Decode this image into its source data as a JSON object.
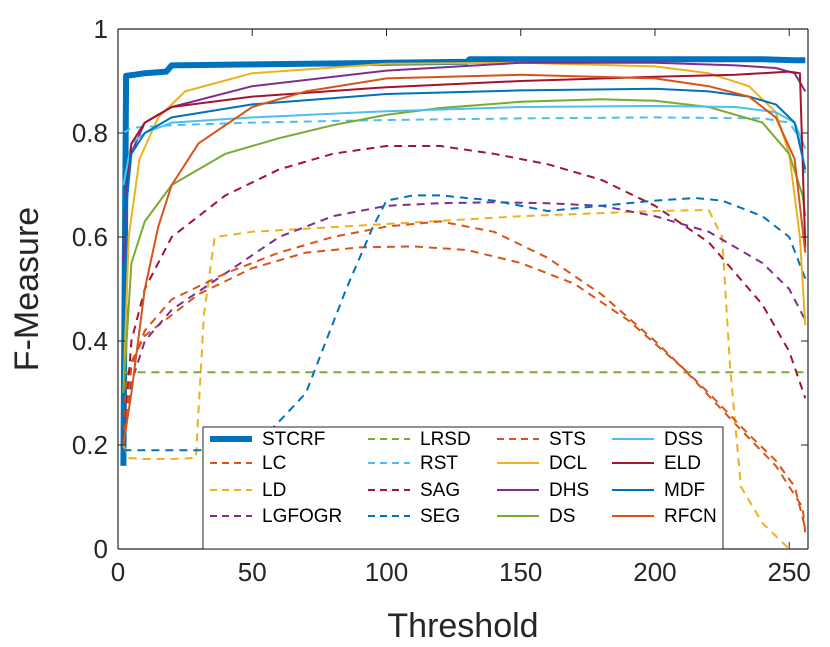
{
  "chart_data": {
    "type": "line",
    "xlabel": "Threshold",
    "ylabel": "F-Measure",
    "xlim": [
      0,
      257
    ],
    "ylim": [
      0,
      1
    ],
    "xticks": [
      0,
      50,
      100,
      150,
      200,
      250
    ],
    "yticks": [
      0,
      0.2,
      0.4,
      0.6,
      0.8,
      1
    ],
    "ytick_labels": [
      "0",
      "0.2",
      "0.4",
      "0.6",
      "0.8",
      "1"
    ],
    "grid": false,
    "legend_position": "bottom-center",
    "series": [
      {
        "name": "STCRF",
        "color": "#0072bd",
        "style": "thick",
        "points": [
          [
            2,
            0.16
          ],
          [
            3,
            0.91
          ],
          [
            6,
            0.912
          ],
          [
            10,
            0.915
          ],
          [
            18,
            0.918
          ],
          [
            20,
            0.93
          ],
          [
            50,
            0.932
          ],
          [
            100,
            0.935
          ],
          [
            130,
            0.937
          ],
          [
            131,
            0.942
          ],
          [
            200,
            0.942
          ],
          [
            240,
            0.942
          ],
          [
            252,
            0.94
          ],
          [
            256,
            0.94
          ]
        ]
      },
      {
        "name": "LC",
        "color": "#d95319",
        "style": "dashed",
        "points": [
          [
            2,
            0.2
          ],
          [
            3,
            0.32
          ],
          [
            5,
            0.36
          ],
          [
            10,
            0.41
          ],
          [
            20,
            0.45
          ],
          [
            30,
            0.49
          ],
          [
            50,
            0.54
          ],
          [
            70,
            0.57
          ],
          [
            90,
            0.58
          ],
          [
            110,
            0.582
          ],
          [
            130,
            0.575
          ],
          [
            150,
            0.55
          ],
          [
            170,
            0.51
          ],
          [
            190,
            0.44
          ],
          [
            210,
            0.35
          ],
          [
            230,
            0.24
          ],
          [
            245,
            0.16
          ],
          [
            255,
            0.08
          ],
          [
            256,
            0.03
          ]
        ]
      },
      {
        "name": "LD",
        "color": "#edb120",
        "style": "dashed",
        "points": [
          [
            2,
            0.2
          ],
          [
            4,
            0.175
          ],
          [
            10,
            0.173
          ],
          [
            20,
            0.173
          ],
          [
            29,
            0.175
          ],
          [
            32,
            0.45
          ],
          [
            36,
            0.6
          ],
          [
            50,
            0.61
          ],
          [
            100,
            0.625
          ],
          [
            150,
            0.64
          ],
          [
            200,
            0.65
          ],
          [
            220,
            0.652
          ],
          [
            225,
            0.6
          ],
          [
            228,
            0.35
          ],
          [
            232,
            0.12
          ],
          [
            240,
            0.05
          ],
          [
            250,
            0.0
          ]
        ]
      },
      {
        "name": "LGFOGR",
        "color": "#7e2f8e",
        "style": "dashed",
        "points": [
          [
            2,
            0.2
          ],
          [
            5,
            0.32
          ],
          [
            10,
            0.4
          ],
          [
            20,
            0.46
          ],
          [
            40,
            0.53
          ],
          [
            60,
            0.6
          ],
          [
            80,
            0.64
          ],
          [
            100,
            0.66
          ],
          [
            120,
            0.665
          ],
          [
            140,
            0.667
          ],
          [
            160,
            0.665
          ],
          [
            180,
            0.66
          ],
          [
            200,
            0.64
          ],
          [
            220,
            0.61
          ],
          [
            240,
            0.55
          ],
          [
            250,
            0.5
          ],
          [
            256,
            0.44
          ]
        ]
      },
      {
        "name": "LRSD",
        "color": "#77ac30",
        "style": "dashed",
        "points": [
          [
            2,
            0.34
          ],
          [
            10,
            0.34
          ],
          [
            256,
            0.34
          ]
        ]
      },
      {
        "name": "RST",
        "color": "#4dbeee",
        "style": "dashed",
        "points": [
          [
            2,
            0.8
          ],
          [
            5,
            0.81
          ],
          [
            20,
            0.815
          ],
          [
            50,
            0.82
          ],
          [
            100,
            0.825
          ],
          [
            150,
            0.828
          ],
          [
            200,
            0.83
          ],
          [
            240,
            0.828
          ],
          [
            250,
            0.82
          ],
          [
            254,
            0.79
          ],
          [
            256,
            0.72
          ]
        ]
      },
      {
        "name": "SAG",
        "color": "#a2142f",
        "style": "dashed",
        "points": [
          [
            2,
            0.2
          ],
          [
            5,
            0.4
          ],
          [
            10,
            0.5
          ],
          [
            20,
            0.6
          ],
          [
            40,
            0.68
          ],
          [
            60,
            0.73
          ],
          [
            80,
            0.76
          ],
          [
            100,
            0.775
          ],
          [
            120,
            0.775
          ],
          [
            140,
            0.76
          ],
          [
            160,
            0.74
          ],
          [
            180,
            0.71
          ],
          [
            200,
            0.66
          ],
          [
            220,
            0.59
          ],
          [
            240,
            0.47
          ],
          [
            250,
            0.38
          ],
          [
            256,
            0.29
          ]
        ]
      },
      {
        "name": "SEG",
        "color": "#0072bd",
        "style": "dashed",
        "points": [
          [
            2,
            0.19
          ],
          [
            10,
            0.19
          ],
          [
            30,
            0.19
          ],
          [
            50,
            0.19
          ],
          [
            70,
            0.3
          ],
          [
            85,
            0.5
          ],
          [
            95,
            0.62
          ],
          [
            100,
            0.67
          ],
          [
            110,
            0.68
          ],
          [
            120,
            0.68
          ],
          [
            140,
            0.67
          ],
          [
            160,
            0.65
          ],
          [
            180,
            0.66
          ],
          [
            200,
            0.67
          ],
          [
            215,
            0.675
          ],
          [
            225,
            0.67
          ],
          [
            240,
            0.64
          ],
          [
            250,
            0.6
          ],
          [
            256,
            0.52
          ]
        ]
      },
      {
        "name": "STS",
        "color": "#d95319",
        "style": "dashed",
        "points": [
          [
            2,
            0.2
          ],
          [
            5,
            0.35
          ],
          [
            10,
            0.42
          ],
          [
            20,
            0.48
          ],
          [
            40,
            0.53
          ],
          [
            60,
            0.57
          ],
          [
            80,
            0.6
          ],
          [
            100,
            0.62
          ],
          [
            120,
            0.63
          ],
          [
            140,
            0.61
          ],
          [
            160,
            0.56
          ],
          [
            180,
            0.49
          ],
          [
            200,
            0.4
          ],
          [
            220,
            0.3
          ],
          [
            235,
            0.22
          ],
          [
            245,
            0.17
          ],
          [
            252,
            0.12
          ],
          [
            256,
            0.04
          ]
        ]
      },
      {
        "name": "DCL",
        "color": "#edb120",
        "style": "solid",
        "points": [
          [
            2,
            0.3
          ],
          [
            4,
            0.6
          ],
          [
            8,
            0.75
          ],
          [
            15,
            0.83
          ],
          [
            25,
            0.88
          ],
          [
            50,
            0.915
          ],
          [
            100,
            0.933
          ],
          [
            150,
            0.935
          ],
          [
            200,
            0.928
          ],
          [
            220,
            0.915
          ],
          [
            235,
            0.89
          ],
          [
            245,
            0.84
          ],
          [
            250,
            0.76
          ],
          [
            254,
            0.6
          ],
          [
            256,
            0.43
          ]
        ]
      },
      {
        "name": "DHS",
        "color": "#7e2f8e",
        "style": "solid",
        "points": [
          [
            2,
            0.55
          ],
          [
            4,
            0.75
          ],
          [
            10,
            0.82
          ],
          [
            20,
            0.85
          ],
          [
            50,
            0.89
          ],
          [
            100,
            0.92
          ],
          [
            150,
            0.935
          ],
          [
            200,
            0.935
          ],
          [
            230,
            0.93
          ],
          [
            245,
            0.925
          ],
          [
            252,
            0.915
          ],
          [
            256,
            0.88
          ]
        ]
      },
      {
        "name": "DS",
        "color": "#77ac30",
        "style": "solid",
        "points": [
          [
            2,
            0.3
          ],
          [
            5,
            0.55
          ],
          [
            10,
            0.63
          ],
          [
            20,
            0.7
          ],
          [
            40,
            0.76
          ],
          [
            60,
            0.79
          ],
          [
            80,
            0.815
          ],
          [
            100,
            0.835
          ],
          [
            120,
            0.848
          ],
          [
            150,
            0.86
          ],
          [
            180,
            0.865
          ],
          [
            200,
            0.862
          ],
          [
            220,
            0.85
          ],
          [
            240,
            0.82
          ],
          [
            250,
            0.76
          ],
          [
            255,
            0.68
          ],
          [
            256,
            0.64
          ]
        ]
      },
      {
        "name": "DSS",
        "color": "#4dbeee",
        "style": "solid",
        "points": [
          [
            2,
            0.7
          ],
          [
            5,
            0.78
          ],
          [
            10,
            0.8
          ],
          [
            20,
            0.82
          ],
          [
            50,
            0.83
          ],
          [
            100,
            0.842
          ],
          [
            150,
            0.85
          ],
          [
            200,
            0.852
          ],
          [
            230,
            0.85
          ],
          [
            245,
            0.84
          ],
          [
            252,
            0.82
          ],
          [
            256,
            0.77
          ]
        ]
      },
      {
        "name": "ELD",
        "color": "#a2142f",
        "style": "solid",
        "points": [
          [
            2,
            0.6
          ],
          [
            5,
            0.78
          ],
          [
            10,
            0.82
          ],
          [
            20,
            0.85
          ],
          [
            50,
            0.87
          ],
          [
            100,
            0.888
          ],
          [
            150,
            0.9
          ],
          [
            200,
            0.908
          ],
          [
            230,
            0.912
          ],
          [
            250,
            0.918
          ],
          [
            254,
            0.915
          ],
          [
            256,
            0.58
          ]
        ]
      },
      {
        "name": "MDF",
        "color": "#0072bd",
        "style": "solid",
        "points": [
          [
            2,
            0.6
          ],
          [
            5,
            0.76
          ],
          [
            10,
            0.8
          ],
          [
            20,
            0.83
          ],
          [
            50,
            0.855
          ],
          [
            100,
            0.875
          ],
          [
            150,
            0.882
          ],
          [
            200,
            0.885
          ],
          [
            220,
            0.88
          ],
          [
            235,
            0.87
          ],
          [
            245,
            0.855
          ],
          [
            252,
            0.82
          ],
          [
            256,
            0.73
          ]
        ]
      },
      {
        "name": "RFCN",
        "color": "#d95319",
        "style": "solid",
        "points": [
          [
            2,
            0.2
          ],
          [
            5,
            0.3
          ],
          [
            10,
            0.5
          ],
          [
            15,
            0.62
          ],
          [
            20,
            0.7
          ],
          [
            30,
            0.78
          ],
          [
            50,
            0.85
          ],
          [
            70,
            0.88
          ],
          [
            100,
            0.905
          ],
          [
            150,
            0.912
          ],
          [
            200,
            0.905
          ],
          [
            220,
            0.89
          ],
          [
            235,
            0.87
          ],
          [
            245,
            0.83
          ],
          [
            252,
            0.75
          ],
          [
            256,
            0.57
          ]
        ]
      }
    ]
  }
}
